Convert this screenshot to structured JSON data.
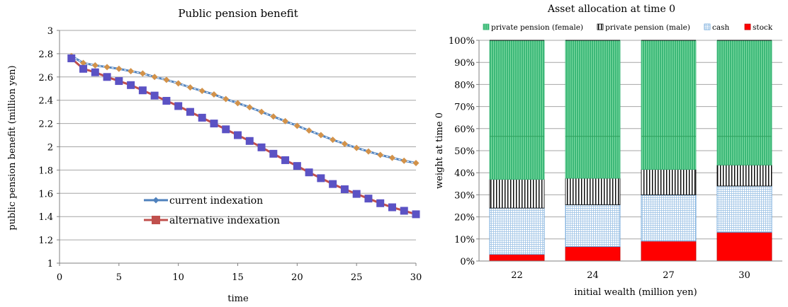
{
  "chart_data": [
    {
      "type": "line",
      "title": "Public pension benefit",
      "xlabel": "time",
      "ylabel": "public pension benefit (million yen)",
      "xlim": [
        0,
        30
      ],
      "ylim": [
        1,
        3
      ],
      "xticks": [
        "0",
        "5",
        "10",
        "15",
        "20",
        "25",
        "30"
      ],
      "yticks": [
        "1",
        "1.2",
        "1.4",
        "1.6",
        "1.8",
        "2",
        "2.2",
        "2.4",
        "2.6",
        "2.8",
        "3"
      ],
      "grid": "horizontal",
      "legend_position": "center-left",
      "x": [
        1,
        2,
        3,
        4,
        5,
        6,
        7,
        8,
        9,
        10,
        11,
        12,
        13,
        14,
        15,
        16,
        17,
        18,
        19,
        20,
        21,
        22,
        23,
        24,
        25,
        26,
        27,
        28,
        29,
        30
      ],
      "series": [
        {
          "name": "current indexation",
          "line_color": "#4f81bd",
          "marker_color": "#d2924a",
          "marker": "diamond",
          "dashed": true,
          "values": [
            2.78,
            2.72,
            2.7,
            2.685,
            2.67,
            2.65,
            2.63,
            2.6,
            2.575,
            2.545,
            2.51,
            2.48,
            2.45,
            2.41,
            2.375,
            2.34,
            2.3,
            2.26,
            2.22,
            2.18,
            2.14,
            2.1,
            2.06,
            2.025,
            1.99,
            1.96,
            1.93,
            1.905,
            1.88,
            1.86
          ]
        },
        {
          "name": "alternative indexation",
          "line_color": "#c0504d",
          "marker_color": "#5b52c4",
          "marker": "square",
          "dashed": false,
          "values": [
            2.76,
            2.67,
            2.64,
            2.6,
            2.565,
            2.53,
            2.485,
            2.44,
            2.395,
            2.35,
            2.3,
            2.25,
            2.2,
            2.15,
            2.1,
            2.05,
            1.995,
            1.94,
            1.885,
            1.835,
            1.78,
            1.73,
            1.68,
            1.635,
            1.595,
            1.555,
            1.515,
            1.48,
            1.45,
            1.42
          ]
        }
      ]
    },
    {
      "type": "bar",
      "stacked": true,
      "title": "Asset allocation at time 0",
      "xlabel": "initial wealth (million yen)",
      "ylabel": "weight at time 0",
      "categories": [
        "22",
        "24",
        "27",
        "30"
      ],
      "ylim": [
        0,
        100
      ],
      "yticks": [
        "0%",
        "10%",
        "20%",
        "30%",
        "40%",
        "50%",
        "60%",
        "70%",
        "80%",
        "90%",
        "100%"
      ],
      "grid": "horizontal",
      "legend_position": "top",
      "inner_line": 56.5,
      "series": [
        {
          "name": "stock",
          "color": "#ff0000",
          "pattern": "solid",
          "values": [
            3,
            6.5,
            9,
            13
          ]
        },
        {
          "name": "cash",
          "color": "#9dc3e6",
          "pattern": "grid",
          "values": [
            21,
            19,
            21,
            21
          ]
        },
        {
          "name": "private pension (male)",
          "color": "#000000",
          "pattern": "vertical-black",
          "values": [
            13,
            12,
            11.5,
            9.5
          ]
        },
        {
          "name": "private pension (female)",
          "color": "#3cb878",
          "pattern": "vertical-green",
          "values": [
            63,
            62.5,
            58.5,
            56.5
          ]
        }
      ],
      "legend_order": [
        "private pension (female)",
        "private pension (male)",
        "cash",
        "stock"
      ]
    }
  ]
}
